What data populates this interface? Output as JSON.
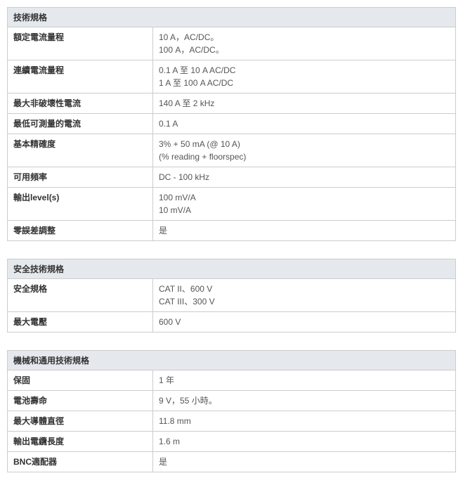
{
  "tables": [
    {
      "title": "技術規格",
      "rows": [
        {
          "label": "額定電流量程",
          "value": "10 A，AC/DC。\n100 A，AC/DC。"
        },
        {
          "label": "連續電流量程",
          "value": "0.1 A 至 10 A AC/DC\n1 A 至 100 A AC/DC"
        },
        {
          "label": "最大非破壞性電流",
          "value": "140 A 至 2 kHz"
        },
        {
          "label": "最低可測量的電流",
          "value": "0.1 A"
        },
        {
          "label": "基本精確度",
          "value": "3% + 50 mA (@ 10 A)\n(% reading + floorspec)"
        },
        {
          "label": "可用頻率",
          "value": "DC - 100 kHz"
        },
        {
          "label": "輸出level(s)",
          "value": "100 mV/A\n10 mV/A"
        },
        {
          "label": "零誤差調整",
          "value": "是"
        }
      ]
    },
    {
      "title": "安全技術規格",
      "rows": [
        {
          "label": "安全規格",
          "value": "CAT II、600 V\nCAT III、300 V"
        },
        {
          "label": "最大電壓",
          "value": "600 V"
        }
      ]
    },
    {
      "title": "機械和通用技術規格",
      "rows": [
        {
          "label": "保固",
          "value": "1 年"
        },
        {
          "label": "電池壽命",
          "value": "9 V，55 小時。"
        },
        {
          "label": "最大導體直徑",
          "value": "11.8 mm"
        },
        {
          "label": "輸出電纜長度",
          "value": "1.6 m"
        },
        {
          "label": "BNC適配器",
          "value": "是"
        }
      ]
    }
  ]
}
